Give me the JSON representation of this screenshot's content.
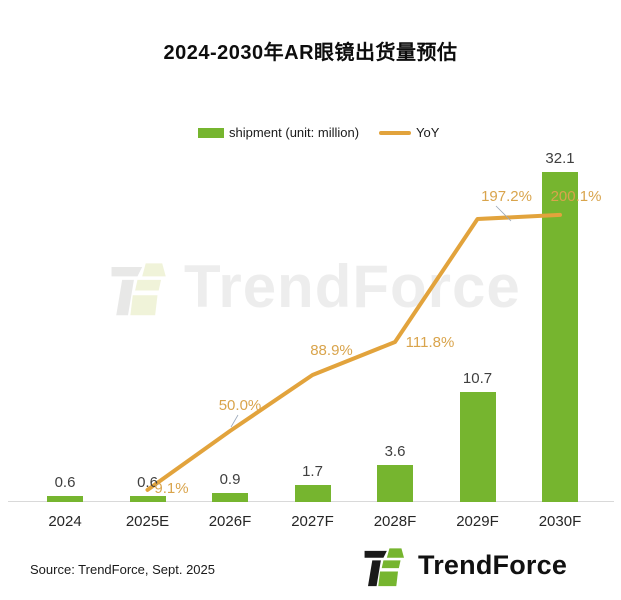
{
  "title": "2024-2030年AR眼镜出货量预估",
  "legend": {
    "shipment_label": "shipment (unit: million)",
    "yoy_label": "YoY"
  },
  "colors": {
    "bar": "#76B52F",
    "line": "#E2A33C",
    "line_label": "#D9A44C"
  },
  "chart_data": {
    "type": "bar",
    "title": "2024-2030年AR眼镜出货量预估",
    "categories": [
      "2024",
      "2025E",
      "2026F",
      "2027F",
      "2028F",
      "2029F",
      "2030F"
    ],
    "series": [
      {
        "name": "shipment (unit: million)",
        "type": "bar",
        "values": [
          0.6,
          0.6,
          0.9,
          1.7,
          3.6,
          10.7,
          32.1
        ],
        "labels": [
          "0.6",
          "0.6",
          "0.9",
          "1.7",
          "3.6",
          "10.7",
          "32.1"
        ],
        "color": "#76B52F"
      },
      {
        "name": "YoY",
        "type": "line",
        "values": [
          null,
          9.1,
          50.0,
          88.9,
          111.8,
          197.2,
          200.1
        ],
        "labels": [
          null,
          "9.1%",
          "50.0%",
          "88.9%",
          "111.8%",
          "197.2%",
          "200.1%"
        ],
        "color": "#E2A33C"
      }
    ],
    "xlabel": "",
    "ylabel": "",
    "grid": false,
    "legend_position": "top"
  },
  "watermark": {
    "text": "TrendForce"
  },
  "footer": {
    "source": "Source: TrendForce, Sept. 2025",
    "logo_text": "TrendForce"
  }
}
